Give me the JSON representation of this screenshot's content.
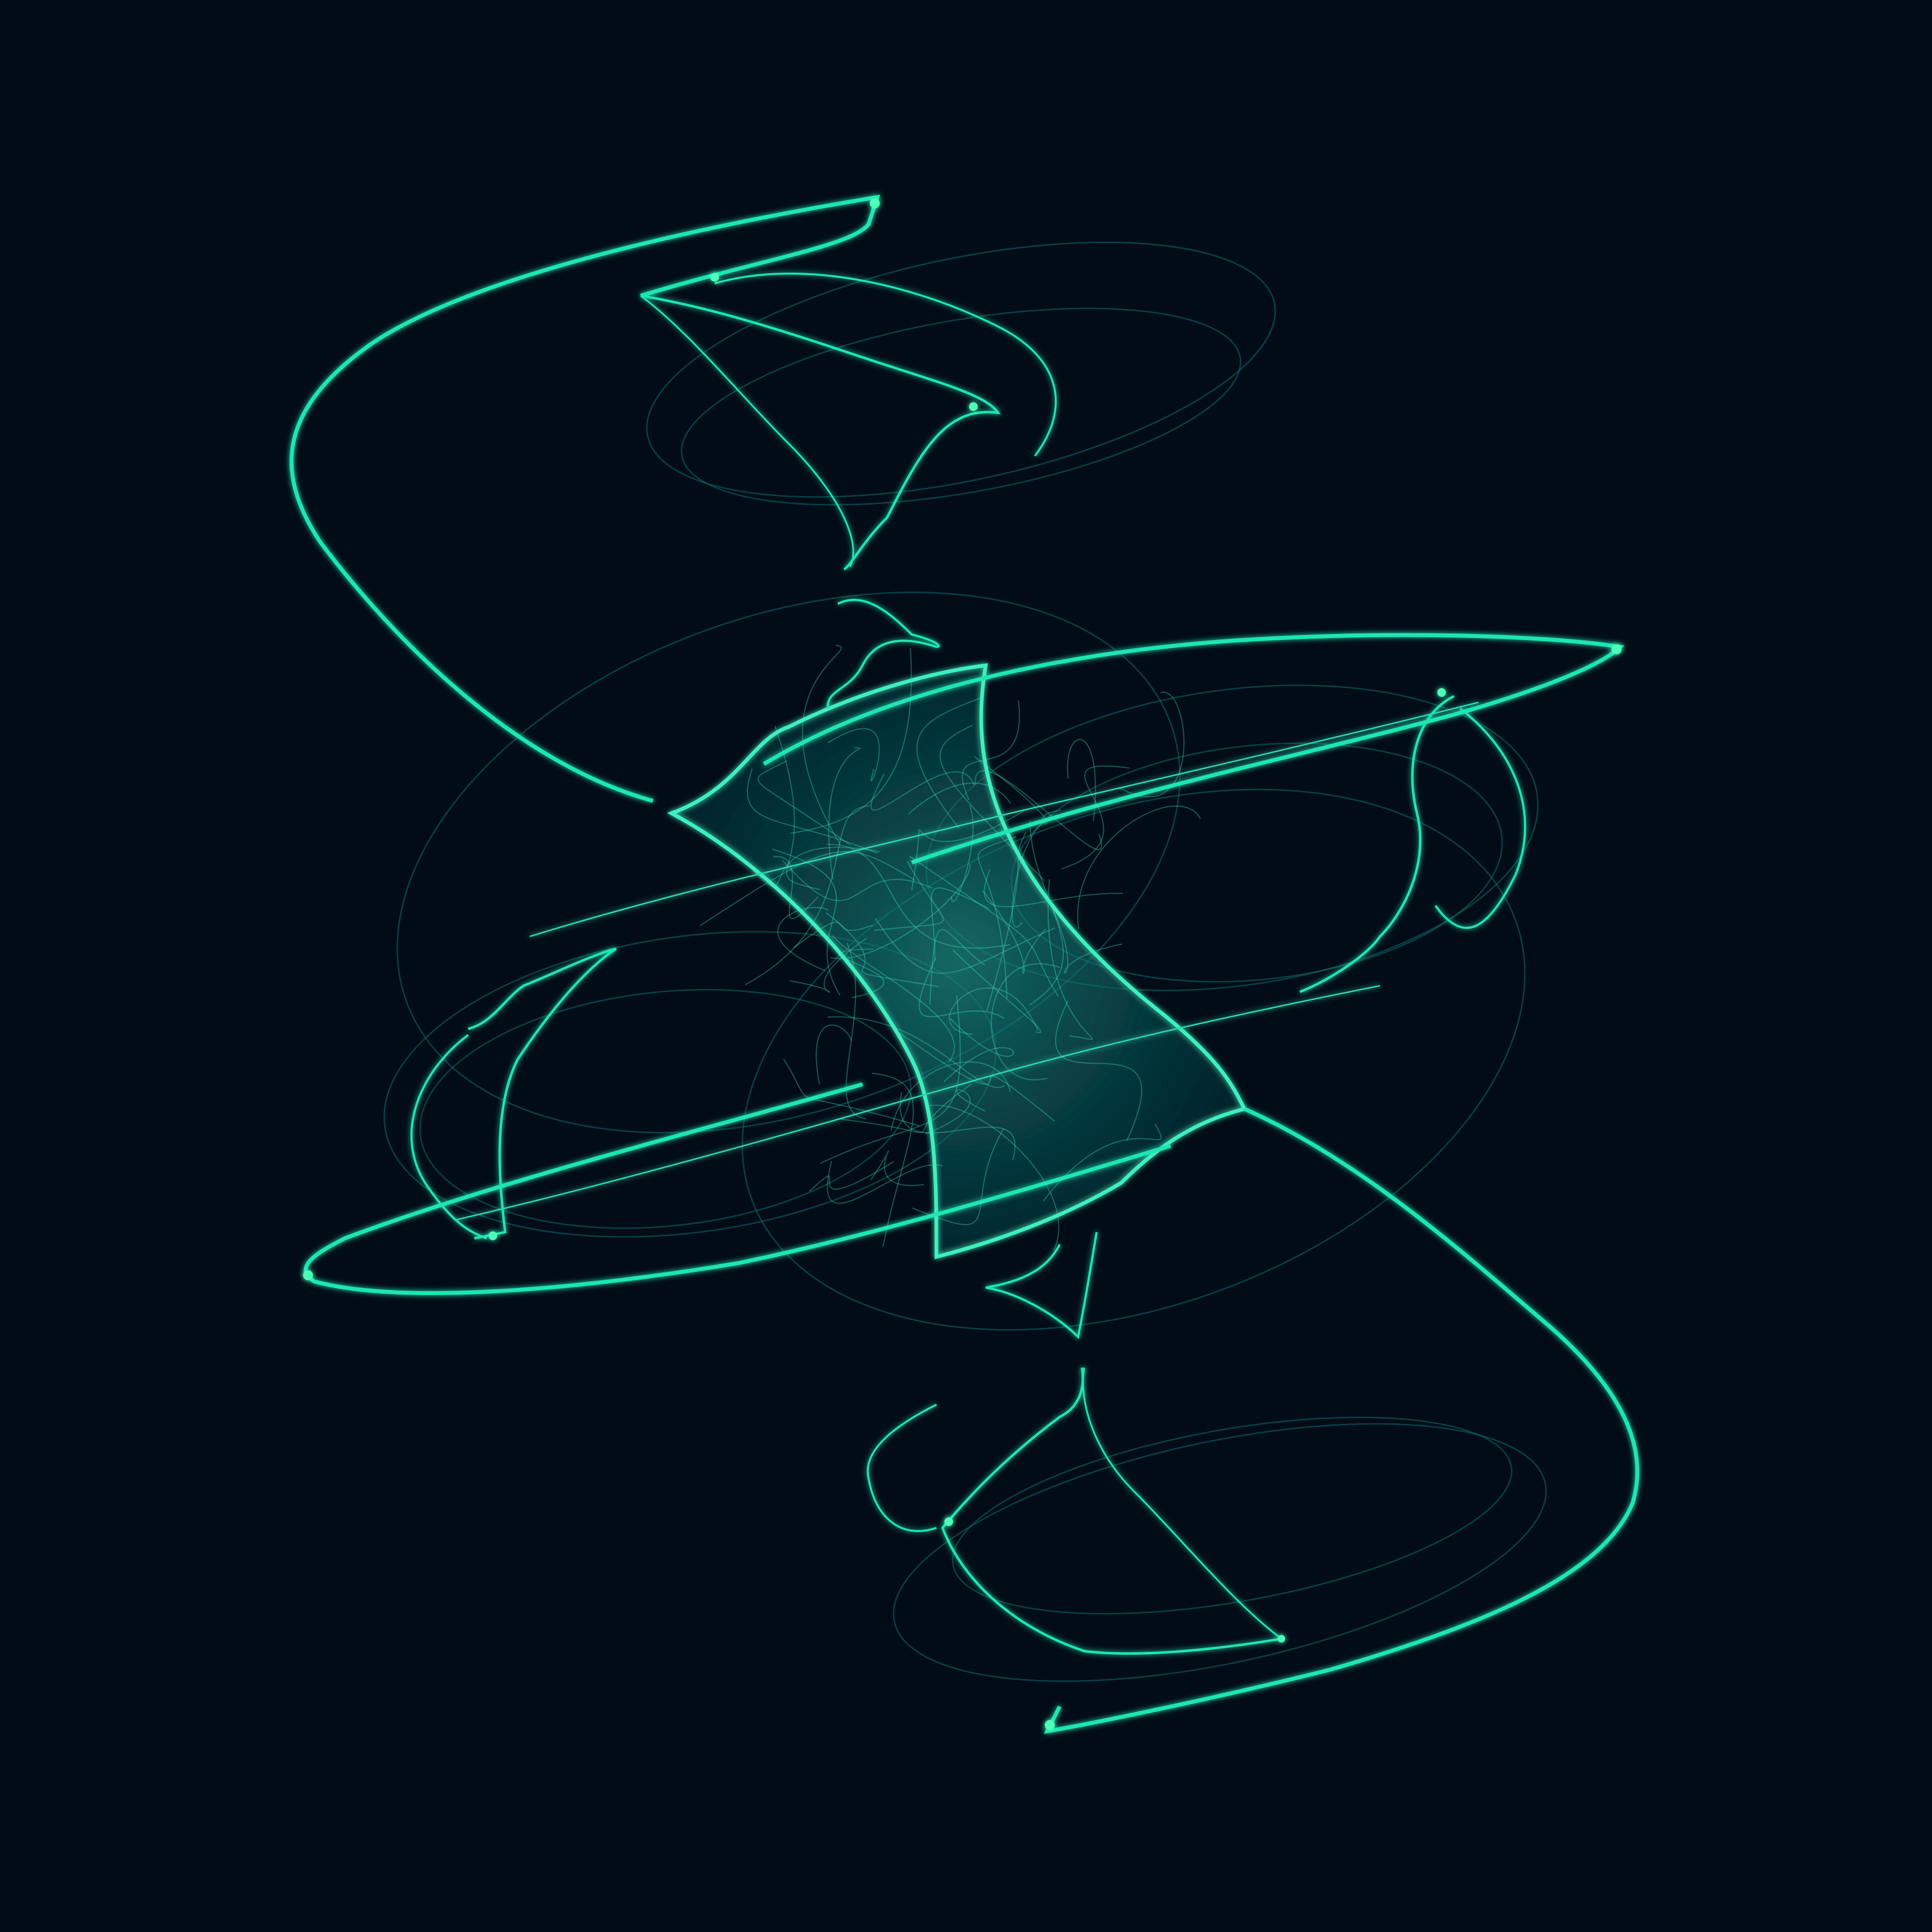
{
  "image": {
    "subject": "strange-attractor",
    "colors": {
      "background": "#020c17",
      "primary": "#1fe6b4",
      "highlight": "#4dffb8",
      "dim": "#0d6b6a"
    }
  }
}
